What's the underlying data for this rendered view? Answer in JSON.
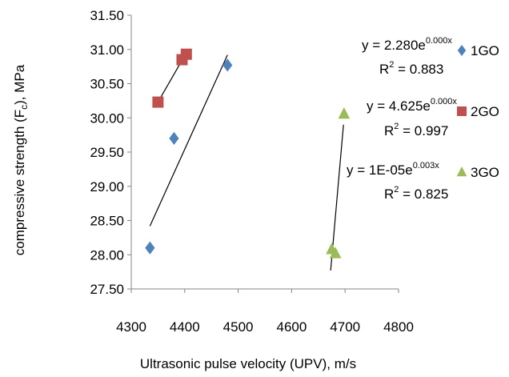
{
  "chart_data": {
    "type": "scatter",
    "title": "",
    "xlabel": "Ultrasonic pulse velocity (UPV), m/s",
    "ylabel": {
      "prefix": "compressive strength (F",
      "sub": "c",
      "suffix": "), MPa"
    },
    "xlim": [
      4300,
      4800
    ],
    "ylim": [
      27.5,
      31.5
    ],
    "x_ticks": [
      "4300",
      "4400",
      "4500",
      "4600",
      "4700",
      "4800"
    ],
    "y_ticks": [
      "27.50",
      "28.00",
      "28.50",
      "29.00",
      "29.50",
      "30.00",
      "30.50",
      "31.00",
      "31.50"
    ],
    "grid": false,
    "legend_placement": "right",
    "series": [
      {
        "name": "1GO",
        "marker": "diamond",
        "color": "#4F81BD",
        "points": [
          [
            4335,
            28.1
          ],
          [
            4380,
            29.7
          ],
          [
            4480,
            30.77
          ]
        ],
        "trendline": {
          "x": [
            4335,
            4480
          ],
          "y": [
            28.42,
            30.92
          ],
          "eq_base": "y = 2.280e",
          "eq_exp": "0.000x",
          "r2_base": "R",
          "r2_sup": "2",
          "r2_rest": " = 0.883"
        }
      },
      {
        "name": "2GO",
        "marker": "square",
        "color": "#C0504D",
        "points": [
          [
            4350,
            30.23
          ],
          [
            4395,
            30.85
          ],
          [
            4403,
            30.93
          ]
        ],
        "trendline": {
          "x": [
            4350,
            4403
          ],
          "y": [
            30.23,
            30.95
          ],
          "eq_base": "y = 4.625e",
          "eq_exp": "0.000x",
          "r2_base": "R",
          "r2_sup": "2",
          "r2_rest": " = 0.997"
        }
      },
      {
        "name": "3GO",
        "marker": "triangle",
        "color": "#9BBB59",
        "points": [
          [
            4675,
            28.08
          ],
          [
            4682,
            28.02
          ],
          [
            4698,
            30.06
          ]
        ],
        "trendline": {
          "x": [
            4673,
            4697
          ],
          "y": [
            27.77,
            29.9
          ],
          "eq_base": "y = 1E-05e",
          "eq_exp": "0.003x",
          "r2_base": "R",
          "r2_sup": "2",
          "r2_rest": " = 0.825"
        }
      }
    ]
  }
}
